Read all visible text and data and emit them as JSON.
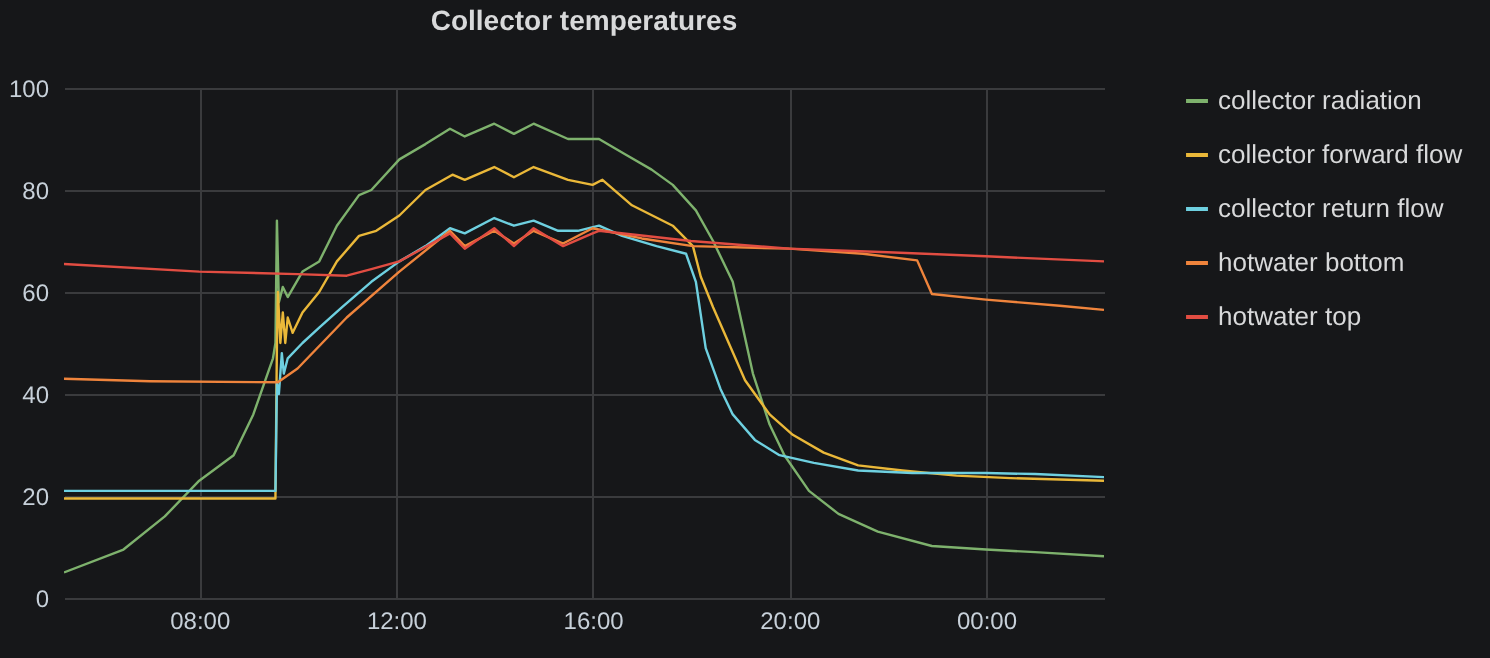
{
  "chart_data": {
    "type": "line",
    "title": "Collector temperatures",
    "xlim": [
      5.25,
      26.4
    ],
    "xticks": [
      {
        "value": 8,
        "label": "08:00"
      },
      {
        "value": 12,
        "label": "12:00"
      },
      {
        "value": 16,
        "label": "16:00"
      },
      {
        "value": 20,
        "label": "20:00"
      },
      {
        "value": 24,
        "label": "00:00"
      }
    ],
    "ylim": [
      0,
      100
    ],
    "yticks": [
      0,
      20,
      40,
      60,
      80,
      100
    ],
    "grid": true,
    "legend": "right",
    "marker": "none",
    "line_style": "solid",
    "series": [
      {
        "name": "collector radiation",
        "color": "#7eb26d",
        "x": [
          5.25,
          6.46,
          7.3,
          8,
          8.7,
          9.1,
          9.5,
          9.55,
          9.58,
          9.62,
          9.7,
          9.8,
          10.1,
          10.44,
          10.8,
          11.25,
          11.5,
          12.07,
          12.6,
          13.1,
          13.4,
          14,
          14.4,
          14.8,
          15.5,
          16,
          16.13,
          16.66,
          17.2,
          17.63,
          18.1,
          18.45,
          18.85,
          19.26,
          19.6,
          19.9,
          20.4,
          21,
          21.8,
          22.9,
          24,
          25,
          26.4
        ],
        "values": [
          5,
          9.5,
          16,
          23,
          28,
          36,
          47,
          50,
          74,
          58,
          61,
          59,
          64,
          66,
          73,
          79,
          80,
          86,
          89,
          92,
          90.5,
          93,
          91,
          93,
          90,
          90,
          90,
          87,
          84,
          81,
          76,
          70,
          62,
          44,
          34,
          28,
          21,
          16.5,
          13,
          10.2,
          9.5,
          9,
          8.2
        ]
      },
      {
        "name": "collector forward flow",
        "color": "#eab839",
        "x": [
          5.25,
          9.55,
          9.58,
          9.6,
          9.65,
          9.7,
          9.75,
          9.8,
          9.9,
          10.1,
          10.44,
          10.8,
          11.25,
          11.6,
          12.07,
          12.6,
          13.15,
          13.4,
          14,
          14.4,
          14.8,
          15.5,
          16,
          16.2,
          16.8,
          17.63,
          18.04,
          18.2,
          18.45,
          19.1,
          19.6,
          20.07,
          20.7,
          21.4,
          22.3,
          23.4,
          24.5,
          26.4
        ],
        "values": [
          19.5,
          19.5,
          50,
          60,
          50,
          56,
          50,
          55,
          52,
          56,
          60,
          66,
          71,
          72,
          75,
          80,
          83,
          82,
          84.5,
          82.5,
          84.5,
          82,
          81,
          82,
          77,
          73,
          69,
          63,
          57,
          42.7,
          36,
          32,
          28.5,
          26,
          25,
          24,
          23.5,
          23
        ]
      },
      {
        "name": "collector return flow",
        "color": "#6ed0e0",
        "x": [
          5.25,
          9.55,
          9.58,
          9.62,
          9.68,
          9.72,
          9.8,
          10.1,
          10.44,
          10.9,
          11.5,
          12.07,
          12.6,
          13.1,
          13.4,
          14,
          14.4,
          14.8,
          15.3,
          15.7,
          16.13,
          16.6,
          17.3,
          17.9,
          18.1,
          18.3,
          18.6,
          18.85,
          19.3,
          19.8,
          20.5,
          21.4,
          22.5,
          24,
          25,
          26.4
        ],
        "values": [
          21,
          21,
          42,
          40,
          48,
          44,
          47,
          50,
          53,
          57,
          62,
          66,
          69,
          72.5,
          71.5,
          74.5,
          73,
          74,
          72,
          72,
          73,
          71,
          69,
          67.5,
          62,
          49,
          41,
          36,
          31,
          28,
          26.5,
          25,
          24.5,
          24.5,
          24.3,
          23.7
        ]
      },
      {
        "name": "hotwater bottom",
        "color": "#ef843c",
        "x": [
          5.25,
          7,
          9.6,
          10,
          11,
          12.07,
          13.1,
          13.4,
          14,
          14.4,
          14.8,
          15.4,
          16,
          17,
          18.04,
          20,
          21.5,
          22.6,
          22.9,
          24,
          25.5,
          26.4
        ],
        "values": [
          43,
          42.5,
          42.3,
          45,
          55,
          64,
          72,
          69,
          72,
          69.5,
          72,
          69.5,
          72.5,
          70.5,
          69,
          68.5,
          67.5,
          66.2,
          59.6,
          58.5,
          57.3,
          56.5
        ]
      },
      {
        "name": "hotwater top",
        "color": "#e24d42",
        "x": [
          5.25,
          8,
          10,
          11,
          11.5,
          12.07,
          13.1,
          13.4,
          14,
          14.4,
          14.8,
          15.4,
          16,
          16.13,
          18,
          20,
          22,
          24,
          26.4
        ],
        "values": [
          65.5,
          64,
          63.5,
          63.2,
          64.5,
          66,
          71.5,
          68.5,
          72.5,
          69,
          72.5,
          69,
          71.5,
          72,
          70,
          68.5,
          67.8,
          67,
          66
        ]
      }
    ]
  }
}
